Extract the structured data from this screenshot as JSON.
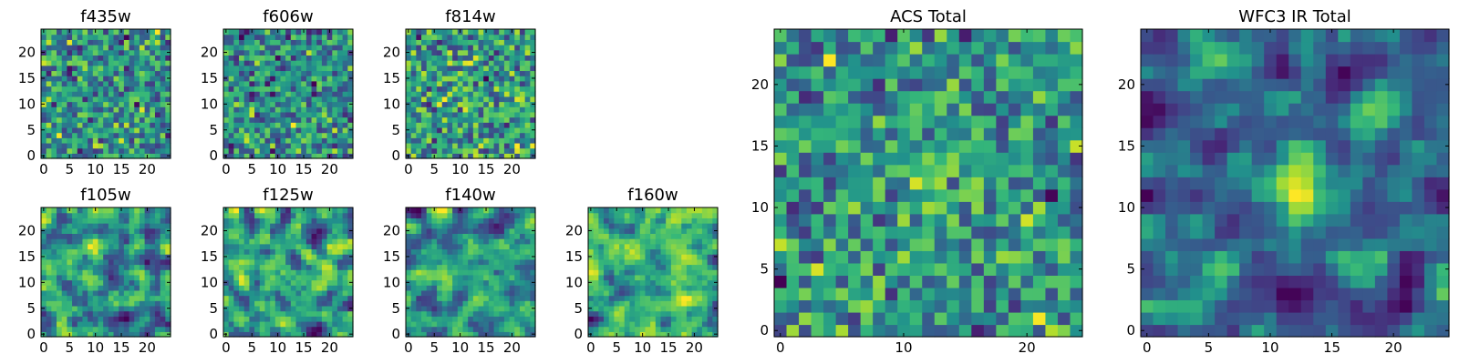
{
  "figure": {
    "background": "#ffffff",
    "colormap": "viridis",
    "colors": {
      "low": "#440154",
      "mid": "#21918c",
      "high": "#fde725",
      "frame": "#000000"
    }
  },
  "chart_data": [
    {
      "type": "heatmap",
      "title": "f435w",
      "grid_size": [
        25,
        25
      ],
      "xlim": [
        -0.5,
        24.5
      ],
      "ylim": [
        -0.5,
        24.5
      ],
      "xticks": [
        0,
        5,
        10,
        15,
        20
      ],
      "yticks": [
        0,
        5,
        10,
        15,
        20
      ],
      "xtick_labels": [
        "0",
        "5",
        "10",
        "15",
        "20"
      ],
      "ytick_labels": [
        "0",
        "5",
        "10",
        "15",
        "20"
      ],
      "texture": "fine pixel noise",
      "seed": 11
    },
    {
      "type": "heatmap",
      "title": "f606w",
      "grid_size": [
        25,
        25
      ],
      "xlim": [
        -0.5,
        24.5
      ],
      "ylim": [
        -0.5,
        24.5
      ],
      "xticks": [
        0,
        5,
        10,
        15,
        20
      ],
      "yticks": [
        0,
        5,
        10,
        15,
        20
      ],
      "xtick_labels": [
        "0",
        "5",
        "10",
        "15",
        "20"
      ],
      "ytick_labels": [
        "0",
        "5",
        "10",
        "15",
        "20"
      ],
      "texture": "fine pixel noise",
      "seed": 23
    },
    {
      "type": "heatmap",
      "title": "f814w",
      "grid_size": [
        25,
        25
      ],
      "xlim": [
        -0.5,
        24.5
      ],
      "ylim": [
        -0.5,
        24.5
      ],
      "xticks": [
        0,
        5,
        10,
        15,
        20
      ],
      "yticks": [
        0,
        5,
        10,
        15,
        20
      ],
      "xtick_labels": [
        "0",
        "5",
        "10",
        "15",
        "20"
      ],
      "ytick_labels": [
        "0",
        "5",
        "10",
        "15",
        "20"
      ],
      "texture": "fine pixel noise",
      "seed": 37
    },
    {
      "type": "heatmap",
      "title": "f105w",
      "grid_size": [
        25,
        25
      ],
      "xlim": [
        -0.5,
        24.5
      ],
      "ylim": [
        -0.5,
        24.5
      ],
      "xticks": [
        0,
        5,
        10,
        15,
        20
      ],
      "yticks": [
        0,
        5,
        10,
        15,
        20
      ],
      "xtick_labels": [
        "0",
        "5",
        "10",
        "15",
        "20"
      ],
      "ytick_labels": [
        "0",
        "5",
        "10",
        "15",
        "20"
      ],
      "texture": "smoothed noise",
      "seed": 41
    },
    {
      "type": "heatmap",
      "title": "f125w",
      "grid_size": [
        25,
        25
      ],
      "xlim": [
        -0.5,
        24.5
      ],
      "ylim": [
        -0.5,
        24.5
      ],
      "xticks": [
        0,
        5,
        10,
        15,
        20
      ],
      "yticks": [
        0,
        5,
        10,
        15,
        20
      ],
      "xtick_labels": [
        "0",
        "5",
        "10",
        "15",
        "20"
      ],
      "ytick_labels": [
        "0",
        "5",
        "10",
        "15",
        "20"
      ],
      "texture": "smoothed noise",
      "seed": 53
    },
    {
      "type": "heatmap",
      "title": "f140w",
      "grid_size": [
        25,
        25
      ],
      "xlim": [
        -0.5,
        24.5
      ],
      "ylim": [
        -0.5,
        24.5
      ],
      "xticks": [
        0,
        5,
        10,
        15,
        20
      ],
      "yticks": [
        0,
        5,
        10,
        15,
        20
      ],
      "xtick_labels": [
        "0",
        "5",
        "10",
        "15",
        "20"
      ],
      "ytick_labels": [
        "0",
        "5",
        "10",
        "15",
        "20"
      ],
      "texture": "smoothed noise",
      "seed": 67
    },
    {
      "type": "heatmap",
      "title": "f160w",
      "grid_size": [
        25,
        25
      ],
      "xlim": [
        -0.5,
        24.5
      ],
      "ylim": [
        -0.5,
        24.5
      ],
      "xticks": [
        0,
        5,
        10,
        15,
        20
      ],
      "yticks": [
        0,
        5,
        10,
        15,
        20
      ],
      "xtick_labels": [
        "0",
        "5",
        "10",
        "15",
        "20"
      ],
      "ytick_labels": [
        "0",
        "5",
        "10",
        "15",
        "20"
      ],
      "texture": "smoothed noise",
      "seed": 79
    },
    {
      "type": "heatmap",
      "title": "ACS Total",
      "grid_size": [
        25,
        25
      ],
      "xlim": [
        -0.5,
        24.5
      ],
      "ylim": [
        -0.5,
        24.5
      ],
      "xticks": [
        0,
        10,
        20
      ],
      "yticks": [
        0,
        5,
        10,
        15,
        20
      ],
      "xtick_labels": [
        "0",
        "10",
        "20"
      ],
      "ytick_labels": [
        "0",
        "5",
        "10",
        "15",
        "20"
      ],
      "texture": "pixel noise with faint central source",
      "seed": 91
    },
    {
      "type": "heatmap",
      "title": "WFC3 IR Total",
      "grid_size": [
        25,
        25
      ],
      "xlim": [
        -0.5,
        24.5
      ],
      "ylim": [
        -0.5,
        24.5
      ],
      "xticks": [
        0,
        5,
        10,
        15,
        20
      ],
      "yticks": [
        0,
        5,
        10,
        15,
        20
      ],
      "xtick_labels": [
        "0",
        "5",
        "10",
        "15",
        "20"
      ],
      "ytick_labels": [
        "0",
        "5",
        "10",
        "15",
        "20"
      ],
      "texture": "smoothed noise with central source",
      "seed": 103
    }
  ]
}
